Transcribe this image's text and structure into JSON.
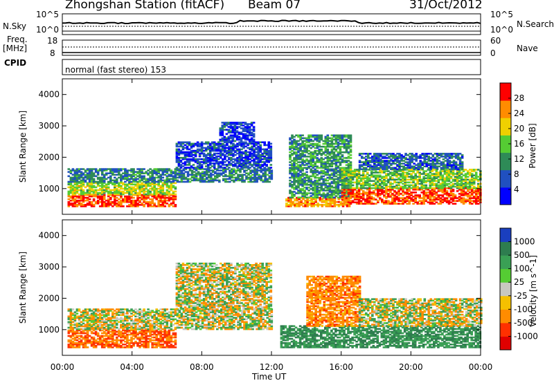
{
  "header": {
    "station": "Zhongshan Station (fitACF)",
    "beam": "Beam 07",
    "date": "31/Oct/2012"
  },
  "noise_panel": {
    "left_label": "N.Sky",
    "right_label": "N.Search",
    "ticks_left": [
      "10^5",
      "10^0"
    ],
    "ticks_right": [
      "10^5",
      "10^0"
    ]
  },
  "freq_panel": {
    "left_label_1": "Freq.",
    "left_label_2": "[MHz]",
    "right_label": "Nave",
    "ticks_left": [
      "18",
      "8"
    ],
    "ticks_right": [
      "60",
      "0"
    ]
  },
  "cpid": {
    "label": "CPID",
    "mode": "normal (fast stereo) 153"
  },
  "x_axis": {
    "label": "Time UT",
    "ticks": [
      "00:00",
      "04:00",
      "08:00",
      "12:00",
      "16:00",
      "20:00",
      "00:00"
    ]
  },
  "chart_data": [
    {
      "type": "heatmap",
      "quantity": "Power",
      "unit": "dB",
      "ylabel": "Slant Range [km]",
      "xlabel": "Time UT",
      "x_range_hours": [
        0,
        24
      ],
      "ylim": [
        180,
        4500
      ],
      "y_ticks": [
        "1000",
        "2000",
        "3000",
        "4000"
      ],
      "colorbar_label": "Power [dB]",
      "colorbar_ticks": [
        "4",
        "8",
        "12",
        "16",
        "20",
        "24",
        "28"
      ],
      "colorbar_range": [
        0,
        32
      ],
      "colors": [
        "#0000ff",
        "#2050c0",
        "#2e8b57",
        "#55cc33",
        "#f0d000",
        "#ff8c00",
        "#ff0000"
      ],
      "echo_regions": [
        {
          "t0": 0.3,
          "t1": 6.5,
          "r0": 420,
          "r1": 800,
          "level": 28
        },
        {
          "t0": 0.3,
          "t1": 6.5,
          "r0": 800,
          "r1": 1200,
          "level": 18
        },
        {
          "t0": 0.3,
          "t1": 12.0,
          "r0": 1200,
          "r1": 1650,
          "level": 10
        },
        {
          "t0": 6.5,
          "t1": 12.0,
          "r0": 1650,
          "r1": 2500,
          "level": 6
        },
        {
          "t0": 9.0,
          "t1": 11.0,
          "r0": 2500,
          "r1": 3100,
          "level": 5
        },
        {
          "t0": 12.8,
          "t1": 16.5,
          "r0": 420,
          "r1": 700,
          "level": 24
        },
        {
          "t0": 13.0,
          "t1": 16.5,
          "r0": 700,
          "r1": 2700,
          "level": 12
        },
        {
          "t0": 16.0,
          "t1": 24.0,
          "r0": 500,
          "r1": 1000,
          "level": 28
        },
        {
          "t0": 16.0,
          "t1": 24.0,
          "r0": 1000,
          "r1": 1600,
          "level": 16
        },
        {
          "t0": 17.0,
          "t1": 23.0,
          "r0": 1600,
          "r1": 2100,
          "level": 8
        }
      ]
    },
    {
      "type": "heatmap",
      "quantity": "Velocity",
      "unit": "m s^-1",
      "ylabel": "Slant Range [km]",
      "xlabel": "Time UT",
      "x_range_hours": [
        0,
        24
      ],
      "ylim": [
        180,
        4500
      ],
      "y_ticks": [
        "1000",
        "2000",
        "3000",
        "4000"
      ],
      "colorbar_label": "Velocity [m s^-1]",
      "colorbar_ticks": [
        "1000",
        "500",
        "100",
        "25",
        "-25",
        "-100",
        "-500",
        "-1000"
      ],
      "colors": [
        "#1a3fbf",
        "#2e7d4f",
        "#3aa055",
        "#55cc33",
        "#c8c8c0",
        "#f5c000",
        "#ff8c00",
        "#ff3000",
        "#e00000"
      ],
      "echo_regions": [
        {
          "t0": 0.3,
          "t1": 6.5,
          "r0": 420,
          "r1": 1000,
          "velocity": -300
        },
        {
          "t0": 0.3,
          "t1": 12.0,
          "r0": 1000,
          "r1": 1650,
          "velocity": 0
        },
        {
          "t0": 6.5,
          "t1": 12.0,
          "r0": 1650,
          "r1": 3100,
          "velocity": 0
        },
        {
          "t0": 12.5,
          "t1": 24.0,
          "r0": 420,
          "r1": 1100,
          "velocity": 300
        },
        {
          "t0": 14.0,
          "t1": 17.0,
          "r0": 1100,
          "r1": 2700,
          "velocity": -200
        },
        {
          "t0": 17.0,
          "t1": 24.0,
          "r0": 1100,
          "r1": 2000,
          "velocity": 0
        }
      ]
    }
  ]
}
